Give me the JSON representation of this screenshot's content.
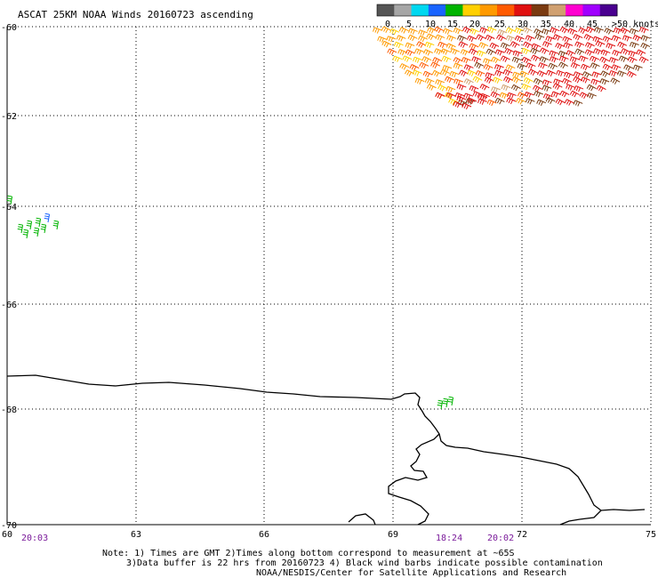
{
  "title": "ASCAT 25KM NOAA Winds 20160723 ascending",
  "colorbar": {
    "labels": [
      "0",
      "5",
      "10",
      "15",
      "20",
      "25",
      "30",
      "35",
      "40",
      "45",
      ">50 knots"
    ],
    "colors": [
      "#555555",
      "#a6a6a6",
      "#00d8f0",
      "#1a64ff",
      "#00b400",
      "#ffd000",
      "#ff9a00",
      "#ff5a00",
      "#e01010",
      "#7a3a10",
      "#d0a070",
      "#ff00d0",
      "#a000ff",
      "#4a0090"
    ]
  },
  "axes": {
    "lat_labels": [
      "-60",
      "-62",
      "-64",
      "-66",
      "-68",
      "-70"
    ],
    "lon_labels": [
      "60",
      "63",
      "66",
      "69",
      "72",
      "75"
    ]
  },
  "times": [
    "20:03",
    "18:24",
    "20:02"
  ],
  "notes": {
    "line1": "Note: 1) Times are GMT 2)Times along bottom correspond to measurement at ~65S",
    "line2": "3)Data buffer is 22 hrs from 20160723 4) Black wind barbs indicate possible contamination",
    "line3": "NOAA/NESDIS/Center for Satellite Applications and Research"
  }
}
